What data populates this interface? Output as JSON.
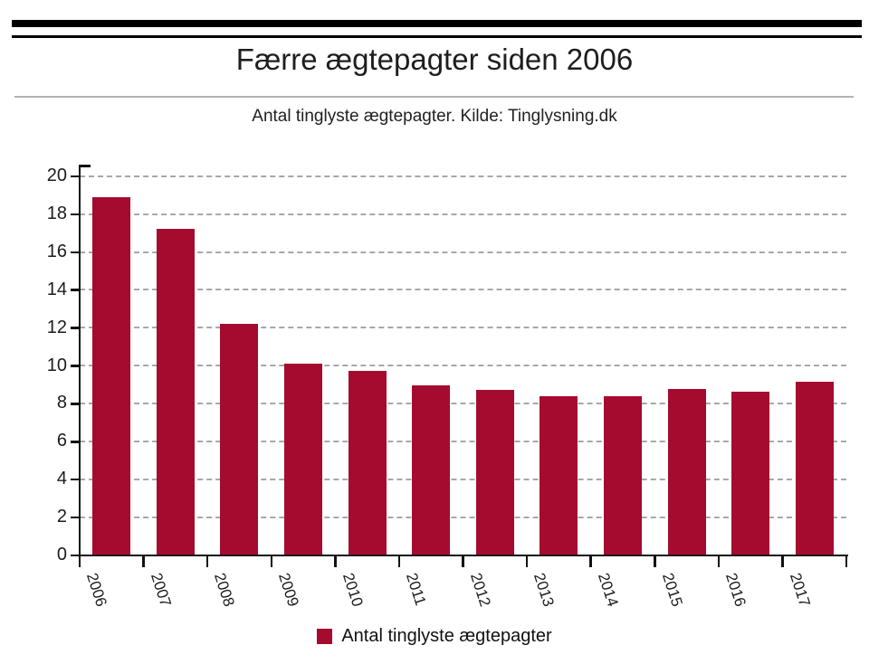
{
  "title": "Færre ægtepagter siden 2006",
  "subtitle": "Antal tinglyste ægtepagter. Kilde: Tinglysning.dk",
  "legend": {
    "label": "Antal tinglyste ægtepagter",
    "swatch_color": "#a50b2e"
  },
  "colors": {
    "bar": "#a50b2e",
    "axis": "#111111",
    "grid": "#a8a8a8",
    "text": "#1c1c1c",
    "masthead": "#000000"
  },
  "chart_data": {
    "type": "bar",
    "title": "Færre ægtepagter siden 2006",
    "subtitle": "Antal tinglyste ægtepagter. Kilde: Tinglysning.dk",
    "series_name": "Antal tinglyste ægtepagter",
    "categories": [
      "2006",
      "2007",
      "2008",
      "2009",
      "2010",
      "2011",
      "2012",
      "2013",
      "2014",
      "2015",
      "2016",
      "2017"
    ],
    "values": [
      18.9,
      17.25,
      12.2,
      10.1,
      9.75,
      8.95,
      8.75,
      8.4,
      8.4,
      8.8,
      8.65,
      9.15
    ],
    "xlabel": "",
    "ylabel": "",
    "ylim": [
      0,
      20
    ],
    "ytick_step": 2,
    "ytick_labels": [
      "0",
      "2",
      "4",
      "6",
      "8",
      "10",
      "12",
      "14",
      "16",
      "18",
      "20"
    ],
    "grid": "horizontal-dashed",
    "legend_position": "bottom-center",
    "x_label_rotation_deg": 72
  }
}
